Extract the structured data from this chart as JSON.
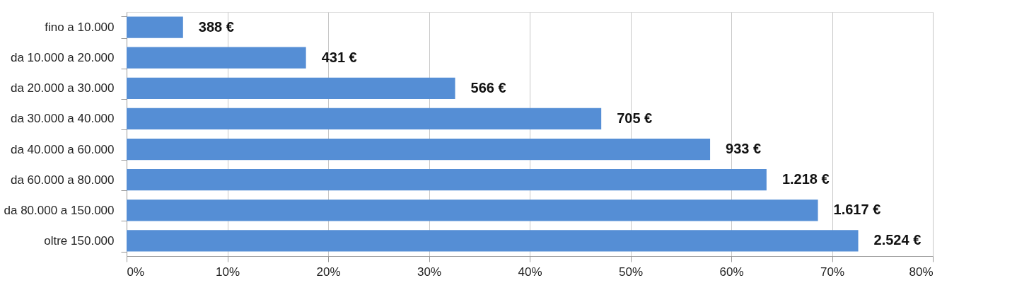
{
  "chart_data": {
    "type": "bar",
    "orientation": "horizontal",
    "categories": [
      "fino a 10.000",
      "da 10.000 a 20.000",
      "da 20.000 a 30.000",
      "da 30.000 a 40.000",
      "da 40.000 a 60.000",
      "da 60.000 a 80.000",
      "da 80.000 a 150.000",
      "oltre 150.000"
    ],
    "values": [
      5.6,
      17.8,
      32.6,
      47.1,
      57.9,
      63.5,
      68.6,
      72.6
    ],
    "annotations": [
      {
        "text": "388 €",
        "x": 5.6,
        "y": "fino a 10.000"
      },
      {
        "text": "431 €",
        "x": 17.8,
        "y": "da 10.000 a 20.000"
      },
      {
        "text": "566 €",
        "x": 32.6,
        "y": "da 20.000 a 30.000"
      },
      {
        "text": "705 €",
        "x": 47.1,
        "y": "da 30.000 a 40.000"
      },
      {
        "text": "933 €",
        "x": 57.9,
        "y": "da 40.000 a 60.000"
      },
      {
        "text": "1.218 €",
        "x": 63.5,
        "y": "da 60.000 a 80.000"
      },
      {
        "text": "1.617 €",
        "x": 68.6,
        "y": "da 80.000 a 150.000"
      },
      {
        "text": "2.524 €",
        "x": 72.6,
        "y": "oltre 150.000"
      }
    ],
    "color": "#558ed5",
    "xlim": [
      0,
      80
    ],
    "xticks": [
      {
        "value": 0,
        "label": "0%"
      },
      {
        "value": 10,
        "label": "10%"
      },
      {
        "value": 20,
        "label": "20%"
      },
      {
        "value": 30,
        "label": "30%"
      },
      {
        "value": 40,
        "label": "40%"
      },
      {
        "value": 50,
        "label": "50%"
      },
      {
        "value": 60,
        "label": "60%"
      },
      {
        "value": 70,
        "label": "70%"
      },
      {
        "value": 80,
        "label": "80%"
      }
    ],
    "grid": "x"
  }
}
